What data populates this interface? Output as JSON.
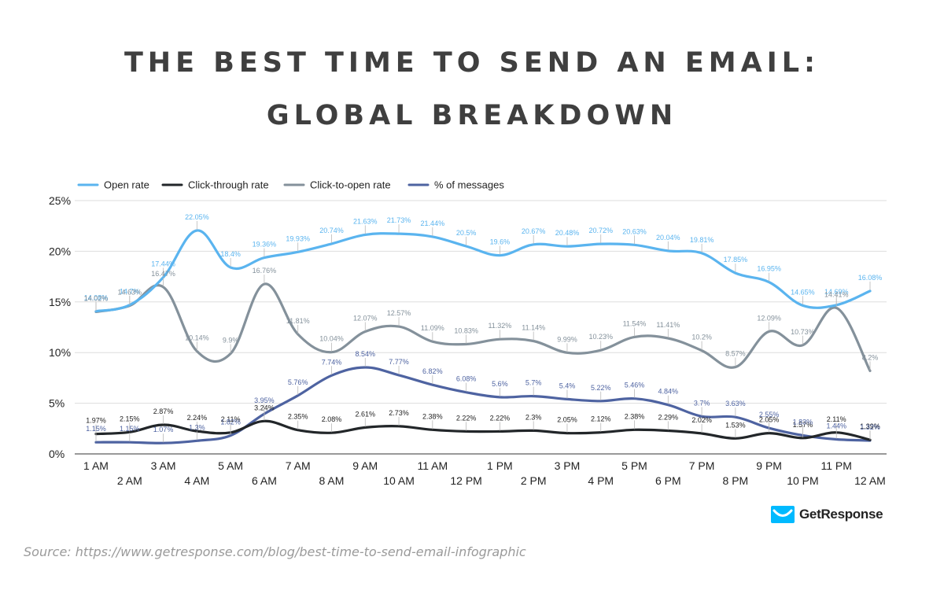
{
  "title_line1": "THE BEST TIME TO SEND AN EMAIL:",
  "title_line2": "GLOBAL BREAKDOWN",
  "brand": "GetResponse",
  "source": "Source: https://www.getresponse.com/blog/best-time-to-send-email-infographic",
  "chart_data": {
    "type": "line",
    "title": "THE BEST TIME TO SEND AN EMAIL: GLOBAL BREAKDOWN",
    "x": [
      "1 AM",
      "2 AM",
      "3 AM",
      "4 AM",
      "5 AM",
      "6 AM",
      "7 AM",
      "8 AM",
      "9 AM",
      "10 AM",
      "11 AM",
      "12 PM",
      "1 PM",
      "2 PM",
      "3 PM",
      "4 PM",
      "5 PM",
      "6 PM",
      "7 PM",
      "8 PM",
      "9 PM",
      "10 PM",
      "11 PM",
      "12 AM"
    ],
    "ylim": [
      0,
      25
    ],
    "yticks": [
      "0%",
      "5%",
      "10%",
      "15%",
      "20%",
      "25%"
    ],
    "ytick_values": [
      0,
      5,
      10,
      15,
      20,
      25
    ],
    "grid": true,
    "legend": "top-left",
    "series": [
      {
        "name": "Open rate",
        "color": "#5ab4ef",
        "values": [
          14.08,
          14.7,
          17.44,
          22.05,
          18.4,
          19.36,
          19.93,
          20.74,
          21.63,
          21.73,
          21.44,
          20.5,
          19.6,
          20.67,
          20.48,
          20.72,
          20.63,
          20.04,
          19.81,
          17.85,
          16.95,
          14.65,
          14.69,
          16.08
        ],
        "labels": [
          "14.08%",
          "14.7%",
          "17.44%",
          "22.05%",
          "18.4%",
          "19.36%",
          "19.93%",
          "20.74%",
          "21.63%",
          "21.73%",
          "21.44%",
          "20.5%",
          "19.6%",
          "20.67%",
          "20.48%",
          "20.72%",
          "20.63%",
          "20.04%",
          "19.81%",
          "17.85%",
          "16.95%",
          "14.65%",
          "14.69%",
          "16.08%"
        ]
      },
      {
        "name": "Click-through rate",
        "color": "#222629",
        "values": [
          1.97,
          2.15,
          2.87,
          2.24,
          2.11,
          3.24,
          2.35,
          2.08,
          2.61,
          2.73,
          2.38,
          2.22,
          2.22,
          2.3,
          2.05,
          2.12,
          2.38,
          2.29,
          2.02,
          1.53,
          2.05,
          1.57,
          2.11,
          1.39
        ],
        "labels": [
          "1.97%",
          "2.15%",
          "2.87%",
          "2.24%",
          "2.11%",
          "3.24%",
          "2.35%",
          "2.08%",
          "2.61%",
          "2.73%",
          "2.38%",
          "2.22%",
          "2.22%",
          "2.3%",
          "2.05%",
          "2.12%",
          "2.38%",
          "2.29%",
          "2.02%",
          "1.53%",
          "2.05%",
          "1.57%",
          "2.11%",
          "1.39%"
        ]
      },
      {
        "name": "Click-to-open rate",
        "color": "#84919b",
        "values": [
          14.02,
          14.63,
          16.47,
          10.14,
          9.9,
          16.76,
          11.81,
          10.04,
          12.07,
          12.57,
          11.09,
          10.83,
          11.32,
          11.14,
          9.99,
          10.23,
          11.54,
          11.41,
          10.2,
          8.57,
          12.09,
          10.73,
          14.41,
          8.2
        ],
        "labels": [
          "14.02%",
          "14.63%",
          "16.47%",
          "10.14%",
          "9.9%",
          "16.76%",
          "11.81%",
          "10.04%",
          "12.07%",
          "12.57%",
          "11.09%",
          "10.83%",
          "11.32%",
          "11.14%",
          "9.99%",
          "10.23%",
          "11.54%",
          "11.41%",
          "10.2%",
          "8.57%",
          "12.09%",
          "10.73%",
          "14.41%",
          "8.2%"
        ]
      },
      {
        "name": "% of messages",
        "color": "#4e63a1",
        "values": [
          1.15,
          1.15,
          1.07,
          1.3,
          1.82,
          3.95,
          5.76,
          7.74,
          8.54,
          7.77,
          6.82,
          6.08,
          5.6,
          5.7,
          5.4,
          5.22,
          5.46,
          4.84,
          3.7,
          3.63,
          2.55,
          1.83,
          1.44,
          1.32
        ],
        "labels": [
          "1.15%",
          "1.15%",
          "1.07%",
          "1.3%",
          "1.82%",
          "3.95%",
          "5.76%",
          "7.74%",
          "8.54%",
          "7.77%",
          "6.82%",
          "6.08%",
          "5.6%",
          "5.7%",
          "5.4%",
          "5.22%",
          "5.46%",
          "4.84%",
          "3.7%",
          "3.63%",
          "2.55%",
          "1.83%",
          "1.44%",
          "1.32%"
        ]
      }
    ]
  }
}
